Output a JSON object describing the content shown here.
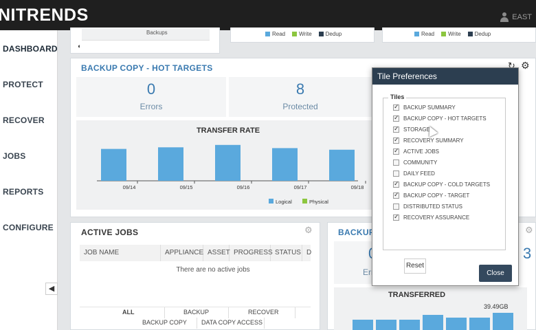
{
  "header": {
    "logo": "NITRENDS",
    "user": "EAST"
  },
  "nav": [
    {
      "label": "DASHBOARD"
    },
    {
      "label": "PROTECT"
    },
    {
      "label": "RECOVER"
    },
    {
      "label": "JOBS"
    },
    {
      "label": "REPORTS"
    },
    {
      "label": "CONFIGURE"
    }
  ],
  "colors": {
    "logical": "#5aa9dd",
    "physical": "#8cc63f",
    "write": "#8cc63f",
    "read": "#5aa9dd",
    "dedup": "#2c3e50"
  },
  "top_strip": {
    "backups_label": "Backups",
    "legend": [
      "Read",
      "Write",
      "Dedup"
    ]
  },
  "hot_targets": {
    "title": "BACKUP COPY - HOT TARGETS",
    "errors_value": "0",
    "errors_label": "Errors",
    "protected_value": "8",
    "protected_label": "Protected"
  },
  "chart_data": {
    "type": "bar",
    "title": "TRANSFER RATE",
    "categories": [
      "09/14",
      "09/15",
      "09/16",
      "09/17",
      "09/18"
    ],
    "series": [
      {
        "name": "Logical",
        "values": [
          0.8,
          0.84,
          0.9,
          0.82,
          0.78
        ]
      },
      {
        "name": "Physical",
        "values": [
          0,
          0,
          0,
          0,
          0
        ]
      }
    ],
    "ylim": [
      0,
      1
    ],
    "legend_position": "bottom"
  },
  "active_jobs": {
    "title": "ACTIVE JOBS",
    "columns": [
      "JOB NAME",
      "APPLIANCE",
      "ASSET",
      "PROGRESS",
      "STATUS",
      "D"
    ],
    "empty_text": "There are no active jobs",
    "filters_row1": [
      "ALL",
      "BACKUP",
      "RECOVER"
    ],
    "filters_row2": [
      "BACKUP COPY",
      "DATA COPY ACCESS"
    ]
  },
  "backup_panel": {
    "title": "BACKUP",
    "value_left": "0",
    "label_left": "Erro",
    "value_right": "3",
    "chart_title": "TRANSFERRED",
    "bar_label": "39.49GB"
  },
  "tile_prefs": {
    "title": "Tile Preferences",
    "group_label": "Tiles",
    "items": [
      {
        "label": "BACKUP SUMMARY",
        "checked": true
      },
      {
        "label": "BACKUP COPY - HOT TARGETS",
        "checked": true
      },
      {
        "label": "STORAGE",
        "checked": true
      },
      {
        "label": "RECOVERY SUMMARY",
        "checked": true
      },
      {
        "label": "ACTIVE JOBS",
        "checked": true
      },
      {
        "label": "COMMUNITY",
        "checked": false
      },
      {
        "label": "DAILY FEED",
        "checked": false
      },
      {
        "label": "BACKUP COPY - COLD TARGETS",
        "checked": true
      },
      {
        "label": "BACKUP COPY - TARGET",
        "checked": true
      },
      {
        "label": "DISTRIBUTED STATUS",
        "checked": false
      },
      {
        "label": "RECOVERY ASSURANCE",
        "checked": true
      }
    ],
    "reset_label": "Reset",
    "close_label": "Close"
  }
}
